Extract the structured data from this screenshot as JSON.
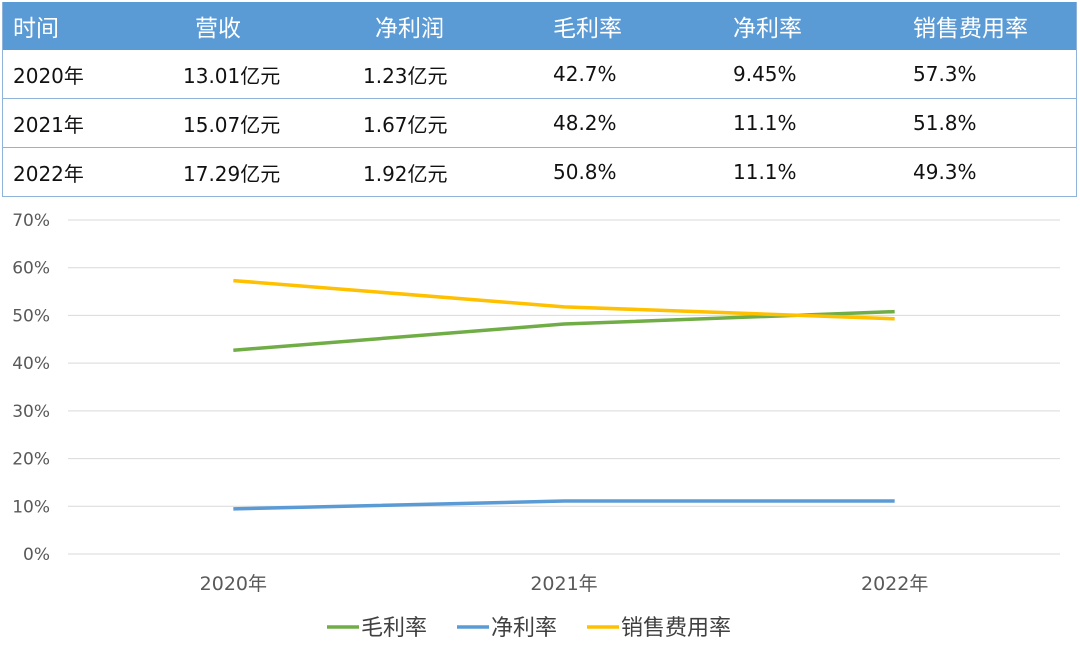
{
  "table": {
    "headers": [
      "时间",
      "营收",
      "净利润",
      "毛利率",
      "净利率",
      "销售费用率"
    ],
    "rows": [
      [
        "2020年",
        "13.01亿元",
        "1.23亿元",
        "42.7%",
        "9.45%",
        "57.3%"
      ],
      [
        "2021年",
        "15.07亿元",
        "1.67亿元",
        "48.2%",
        "11.1%",
        "51.8%"
      ],
      [
        "2022年",
        "17.29亿元",
        "1.92亿元",
        "50.8%",
        "11.1%",
        "49.3%"
      ]
    ]
  },
  "chart_data": {
    "type": "line",
    "categories": [
      "2020年",
      "2021年",
      "2022年"
    ],
    "series": [
      {
        "name": "毛利率",
        "values": [
          42.7,
          48.2,
          50.8
        ],
        "color": "#70ad47"
      },
      {
        "name": "净利率",
        "values": [
          9.45,
          11.1,
          11.1
        ],
        "color": "#5b9bd5"
      },
      {
        "name": "销售费用率",
        "values": [
          57.3,
          51.8,
          49.3
        ],
        "color": "#ffc000"
      }
    ],
    "ylim": [
      0,
      70
    ],
    "yticks": [
      "0%",
      "10%",
      "20%",
      "30%",
      "40%",
      "50%",
      "60%",
      "70%"
    ],
    "grid": true,
    "legend": "bottom"
  },
  "colors": {
    "header_bg": "#5b9bd5",
    "header_text": "#ffffff",
    "border": "#8fb3d9",
    "gridline": "#d9d9d9"
  }
}
